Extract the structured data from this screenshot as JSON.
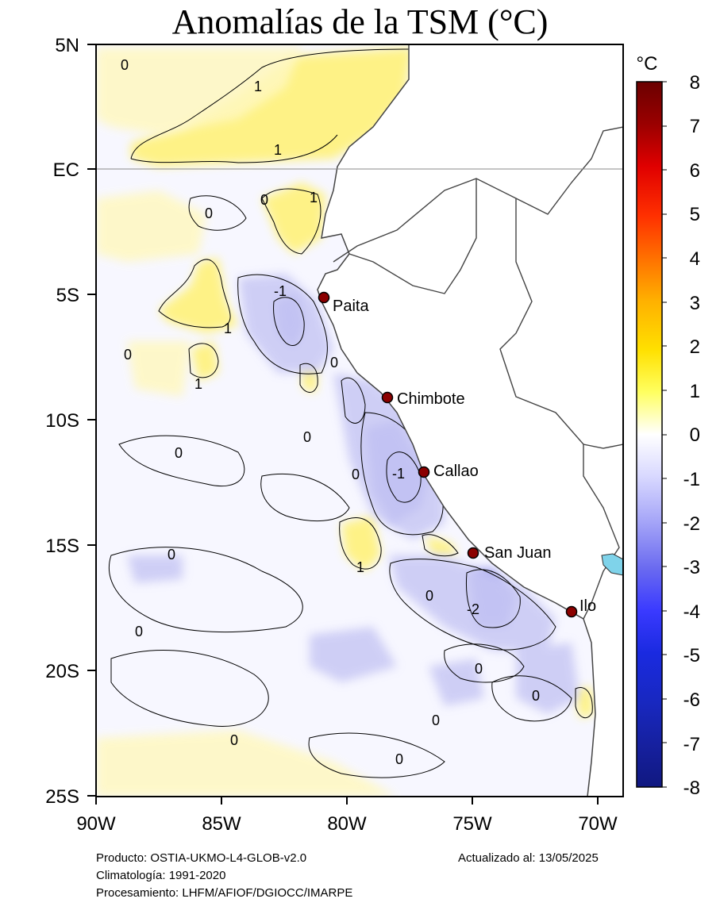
{
  "title": "Anomalías de la TSM (°C)",
  "map": {
    "lat_labels": [
      "5N",
      "EC",
      "5S",
      "10S",
      "15S",
      "20S",
      "25S"
    ],
    "lon_labels": [
      "90W",
      "85W",
      "80W",
      "75W",
      "70W"
    ],
    "cities": [
      {
        "name": "Paita"
      },
      {
        "name": "Chimbote"
      },
      {
        "name": "Callao"
      },
      {
        "name": "San Juan"
      },
      {
        "name": "Ilo"
      }
    ],
    "contour_labels": [
      "0",
      "1",
      "1",
      "0",
      "1",
      "0",
      "-1",
      "1",
      "0",
      "1",
      "0",
      "0",
      "0",
      "0",
      "-1",
      "0",
      "1",
      "0",
      "-2",
      "0",
      "0",
      "0",
      "0",
      "0",
      "0"
    ]
  },
  "colorbar": {
    "unit": "°C",
    "ticks": [
      "8",
      "7",
      "6",
      "5",
      "4",
      "3",
      "2",
      "1",
      "0",
      "-1",
      "-2",
      "-3",
      "-4",
      "-5",
      "-6",
      "-7",
      "-8"
    ]
  },
  "footer": {
    "producto": "Producto: OSTIA-UKMO-L4-GLOB-v2.0",
    "climatologia": "Climatología: 1991-2020",
    "procesamiento": "Procesamiento: LHFM/AFIOF/DGIOCC/IMARPE",
    "actualizado": "Actualizado al: 13/05/2025"
  }
}
